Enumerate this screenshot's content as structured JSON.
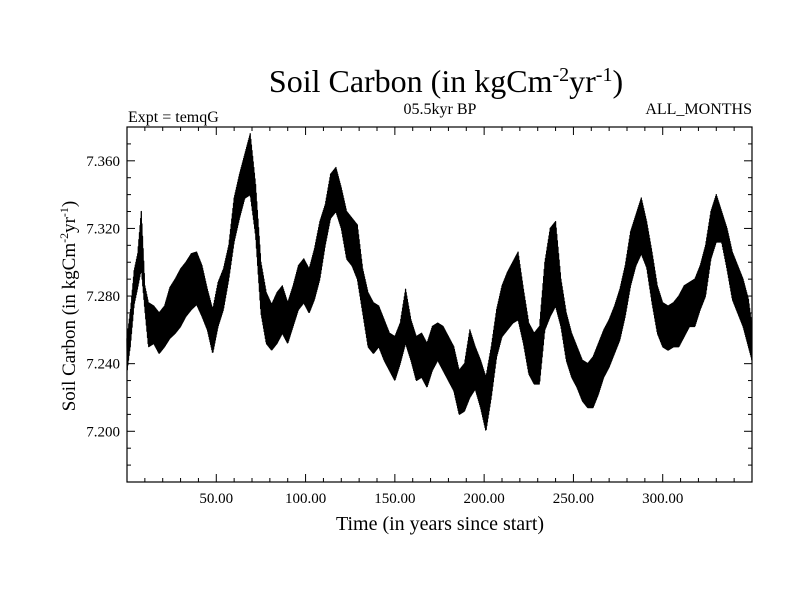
{
  "chart_data": {
    "type": "line",
    "title": {
      "main": "Soil Carbon (in kgCm",
      "sup1": "-2",
      "mid": "yr",
      "sup2": "-1",
      "end": ")"
    },
    "top_left_label": "Expt = temqG",
    "top_center_label": "05.5kyr BP",
    "top_right_label": "ALL_MONTHS",
    "xlabel": "Time (in years since start)",
    "ylabel": {
      "main": "Soil Carbon (in kgCm",
      "sup1": "-2",
      "mid": "yr",
      "sup2": "-1",
      "end": ")"
    },
    "xlim": [
      0,
      350
    ],
    "ylim": [
      7.17,
      7.38
    ],
    "x_ticks": [
      {
        "value": 50,
        "label": "50.00"
      },
      {
        "value": 100,
        "label": "100.00"
      },
      {
        "value": 150,
        "label": "150.00"
      },
      {
        "value": 200,
        "label": "200.00"
      },
      {
        "value": 250,
        "label": "250.00"
      },
      {
        "value": 300,
        "label": "300.00"
      }
    ],
    "y_ticks": [
      {
        "value": 7.2,
        "label": "7.200"
      },
      {
        "value": 7.24,
        "label": "7.240"
      },
      {
        "value": 7.28,
        "label": "7.280"
      },
      {
        "value": 7.32,
        "label": "7.320"
      },
      {
        "value": 7.36,
        "label": "7.360"
      }
    ],
    "grid": false,
    "series": [
      {
        "color": "#000000",
        "x": [
          0,
          2,
          4,
          6,
          8,
          10,
          12,
          15,
          18,
          21,
          24,
          27,
          30,
          33,
          36,
          39,
          42,
          45,
          48,
          51,
          54,
          57,
          60,
          63,
          66,
          69,
          72,
          75,
          78,
          81,
          84,
          87,
          90,
          93,
          96,
          99,
          102,
          105,
          108,
          111,
          114,
          117,
          120,
          123,
          126,
          129,
          132,
          135,
          138,
          141,
          144,
          147,
          150,
          153,
          156,
          159,
          162,
          165,
          168,
          171,
          174,
          177,
          180,
          183,
          186,
          189,
          192,
          195,
          198,
          201,
          204,
          207,
          210,
          213,
          216,
          219,
          222,
          225,
          228,
          231,
          234,
          237,
          240,
          243,
          246,
          249,
          252,
          255,
          258,
          261,
          264,
          267,
          270,
          273,
          276,
          279,
          282,
          285,
          288,
          291,
          294,
          297,
          300,
          303,
          306,
          309,
          312,
          315,
          318,
          321,
          324,
          327,
          330,
          333,
          336,
          339,
          342,
          345,
          348,
          350
        ],
        "min": [
          7.235,
          7.252,
          7.275,
          7.285,
          7.296,
          7.272,
          7.25,
          7.252,
          7.246,
          7.25,
          7.255,
          7.258,
          7.262,
          7.268,
          7.272,
          7.275,
          7.268,
          7.26,
          7.246,
          7.262,
          7.272,
          7.29,
          7.312,
          7.326,
          7.338,
          7.34,
          7.316,
          7.27,
          7.252,
          7.248,
          7.252,
          7.258,
          7.252,
          7.262,
          7.272,
          7.276,
          7.27,
          7.278,
          7.29,
          7.31,
          7.326,
          7.33,
          7.32,
          7.302,
          7.298,
          7.29,
          7.27,
          7.25,
          7.246,
          7.25,
          7.242,
          7.236,
          7.23,
          7.24,
          7.252,
          7.242,
          7.23,
          7.232,
          7.226,
          7.236,
          7.242,
          7.236,
          7.23,
          7.224,
          7.21,
          7.212,
          7.22,
          7.225,
          7.214,
          7.2,
          7.22,
          7.244,
          7.256,
          7.26,
          7.264,
          7.266,
          7.252,
          7.234,
          7.228,
          7.228,
          7.26,
          7.268,
          7.274,
          7.262,
          7.242,
          7.232,
          7.226,
          7.218,
          7.214,
          7.214,
          7.222,
          7.232,
          7.238,
          7.246,
          7.254,
          7.268,
          7.286,
          7.298,
          7.305,
          7.297,
          7.276,
          7.258,
          7.25,
          7.248,
          7.25,
          7.25,
          7.256,
          7.262,
          7.262,
          7.272,
          7.28,
          7.302,
          7.312,
          7.312,
          7.296,
          7.278,
          7.27,
          7.262,
          7.25,
          7.242
        ],
        "max": [
          7.255,
          7.272,
          7.295,
          7.305,
          7.33,
          7.286,
          7.276,
          7.274,
          7.27,
          7.274,
          7.285,
          7.29,
          7.296,
          7.3,
          7.305,
          7.306,
          7.298,
          7.284,
          7.272,
          7.288,
          7.296,
          7.31,
          7.338,
          7.352,
          7.364,
          7.376,
          7.346,
          7.3,
          7.282,
          7.275,
          7.282,
          7.286,
          7.276,
          7.286,
          7.298,
          7.302,
          7.296,
          7.308,
          7.324,
          7.334,
          7.352,
          7.356,
          7.344,
          7.33,
          7.326,
          7.322,
          7.296,
          7.282,
          7.276,
          7.274,
          7.266,
          7.258,
          7.256,
          7.264,
          7.284,
          7.266,
          7.256,
          7.258,
          7.252,
          7.262,
          7.264,
          7.262,
          7.256,
          7.25,
          7.236,
          7.24,
          7.26,
          7.25,
          7.242,
          7.232,
          7.25,
          7.272,
          7.286,
          7.294,
          7.3,
          7.306,
          7.284,
          7.264,
          7.258,
          7.262,
          7.3,
          7.32,
          7.324,
          7.29,
          7.27,
          7.258,
          7.25,
          7.242,
          7.24,
          7.244,
          7.252,
          7.26,
          7.266,
          7.274,
          7.284,
          7.298,
          7.318,
          7.328,
          7.338,
          7.324,
          7.306,
          7.286,
          7.276,
          7.274,
          7.276,
          7.28,
          7.286,
          7.288,
          7.29,
          7.298,
          7.31,
          7.33,
          7.34,
          7.33,
          7.32,
          7.306,
          7.298,
          7.29,
          7.278,
          7.262
        ]
      }
    ]
  }
}
